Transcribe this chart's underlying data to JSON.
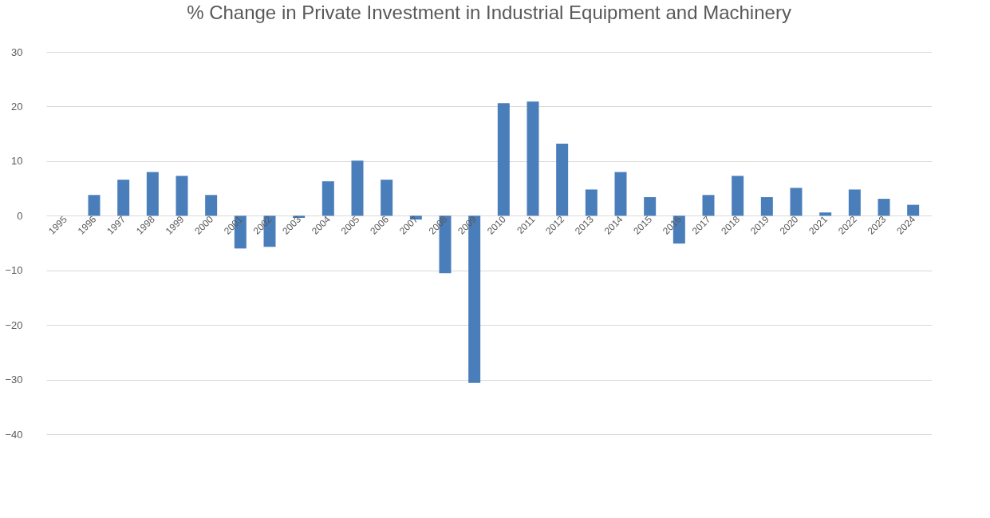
{
  "chart_data": {
    "type": "bar",
    "title": "% Change in Private Investment in Industrial Equipment and Machinery",
    "categories": [
      "1995",
      "1996",
      "1997",
      "1998",
      "1999",
      "2000",
      "2001",
      "2002",
      "2003",
      "2004",
      "2005",
      "2006",
      "2007",
      "2008",
      "2009",
      "2010",
      "2011",
      "2012",
      "2013",
      "2014",
      "2015",
      "2016",
      "2017",
      "2018",
      "2019",
      "2020",
      "2021",
      "2022",
      "2023",
      "2024"
    ],
    "values": [
      0,
      3.8,
      6.6,
      8.0,
      7.3,
      3.8,
      -6.0,
      -5.7,
      -0.4,
      6.3,
      10.1,
      6.6,
      -0.7,
      -10.5,
      -30.6,
      20.6,
      20.9,
      13.2,
      4.8,
      8.0,
      3.4,
      -5.1,
      3.8,
      7.3,
      3.4,
      5.1,
      0.6,
      4.8,
      3.1,
      2.0
    ],
    "color": "#4a7ebb",
    "ylim": [
      -40,
      30
    ],
    "yticks": [
      -40,
      -30,
      -20,
      -10,
      0,
      10,
      20,
      30
    ],
    "grid": "y"
  }
}
